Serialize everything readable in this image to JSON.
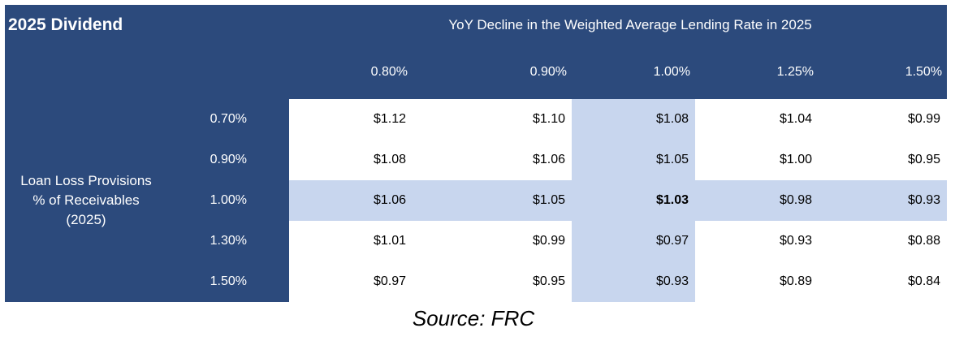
{
  "table": {
    "title": "2025 Dividend",
    "column_header_title": "YoY Decline in the Weighted Average Lending Rate in 2025",
    "row_header_title_lines": [
      "Loan Loss Provisions",
      "% of Receivables",
      "(2025)"
    ],
    "columns": [
      "0.80%",
      "0.90%",
      "1.00%",
      "1.25%",
      "1.50%"
    ],
    "rows": [
      {
        "label": "0.70%",
        "values": [
          "$1.12",
          "$1.10",
          "$1.08",
          "$1.04",
          "$0.99"
        ]
      },
      {
        "label": "0.90%",
        "values": [
          "$1.08",
          "$1.06",
          "$1.05",
          "$1.00",
          "$0.95"
        ]
      },
      {
        "label": "1.00%",
        "values": [
          "$1.06",
          "$1.05",
          "$1.03",
          "$0.98",
          "$0.93"
        ]
      },
      {
        "label": "1.30%",
        "values": [
          "$1.01",
          "$0.99",
          "$0.97",
          "$0.93",
          "$0.88"
        ]
      },
      {
        "label": "1.50%",
        "values": [
          "$0.97",
          "$0.95",
          "$0.93",
          "$0.89",
          "$0.84"
        ]
      }
    ]
  },
  "source": "Source: FRC",
  "colors": {
    "header_navy": "#2c4a7c",
    "highlight_blue": "#c8d6ee"
  }
}
